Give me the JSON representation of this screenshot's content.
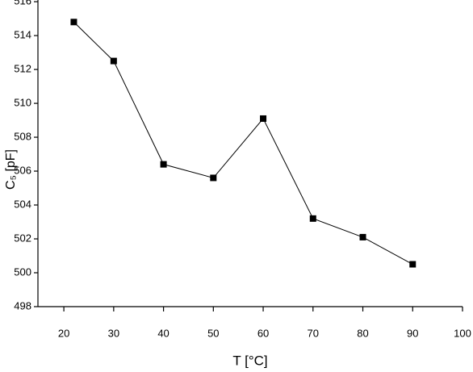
{
  "chart_data": {
    "type": "line",
    "x": [
      22,
      30,
      40,
      50,
      60,
      70,
      80,
      90
    ],
    "series": [
      {
        "name": "C5",
        "color": "#000000",
        "values": [
          514.8,
          512.5,
          506.4,
          505.6,
          509.1,
          503.2,
          502.1,
          500.5
        ]
      }
    ],
    "xlim": [
      14.8,
      100
    ],
    "xticks": [
      20,
      30,
      40,
      50,
      60,
      70,
      80,
      90,
      100
    ],
    "ylim": [
      498,
      516.1
    ],
    "yticks": [
      498,
      500,
      502,
      504,
      506,
      508,
      510,
      512,
      514,
      516
    ],
    "xlabel": "T [°C]",
    "ylabel": "C₅ [pF]",
    "grid": false
  }
}
